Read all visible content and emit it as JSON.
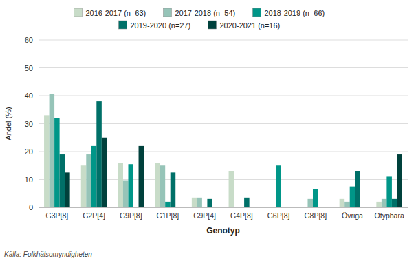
{
  "chart_data": {
    "type": "bar",
    "xlabel": "Genotyp",
    "ylabel": "Andel (%)",
    "categories": [
      "G3P[8]",
      "G2P[4]",
      "G9P[8]",
      "G1P[8]",
      "G9P[4]",
      "G4P[8]",
      "G6P[8]",
      "G8P[8]",
      "Övriga",
      "Otypbara"
    ],
    "series": [
      {
        "name": "2016-2017 (n=63)",
        "color": "#c8dcc8",
        "values": [
          33,
          15,
          16,
          16,
          3.5,
          13,
          0,
          0,
          3,
          2
        ]
      },
      {
        "name": "2017-2018 (n=54)",
        "color": "#96c4b8",
        "values": [
          40.5,
          19,
          9.5,
          15,
          3.5,
          0,
          0,
          3,
          2,
          3
        ]
      },
      {
        "name": "2018-2019 (n=66)",
        "color": "#009688",
        "values": [
          32,
          22,
          15.5,
          2,
          0,
          0,
          15,
          6.5,
          7.5,
          11
        ]
      },
      {
        "name": "2019-2020 (n=27)",
        "color": "#007068",
        "values": [
          19,
          38,
          0,
          12.5,
          3,
          3.5,
          0,
          0,
          13,
          3
        ]
      },
      {
        "name": "2020-2021 (n=16)",
        "color": "#00413c",
        "values": [
          12.5,
          25,
          22,
          0,
          0,
          0,
          0,
          0,
          0,
          19
        ]
      }
    ],
    "ylim": [
      0,
      60
    ],
    "yticks": [
      0,
      10,
      20,
      30,
      40,
      50,
      60
    ],
    "grid": true,
    "legend": "top",
    "annotations": [
      "Källa: Folkhälsomyndigheten"
    ]
  }
}
